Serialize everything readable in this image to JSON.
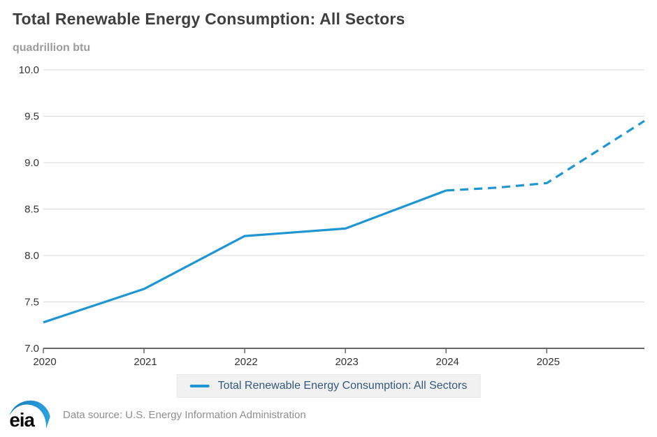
{
  "header": {
    "title": "Total Renewable Energy Consumption: All Sectors",
    "units_label": "quadrillion btu"
  },
  "chart_data": {
    "type": "line",
    "title": "Total Renewable Energy Consumption: All Sectors",
    "ylabel": "quadrillion btu",
    "xlabel": "",
    "xlim": [
      2020,
      2025.97
    ],
    "ylim": [
      7.0,
      10.0
    ],
    "grid": "horizontal gridlines, light gray; bottom axis dark with downward year ticks",
    "legend_position": "bottom-center",
    "x_ticks": [
      2020,
      2021,
      2022,
      2023,
      2024,
      2025
    ],
    "x_tick_labels": [
      "2020",
      "2021",
      "2022",
      "2023",
      "2024",
      "2025"
    ],
    "y_ticks": [
      7.0,
      7.5,
      8.0,
      8.5,
      9.0,
      9.5,
      10.0
    ],
    "y_tick_labels": [
      "7.0",
      "7.5",
      "8.0",
      "8.5",
      "9.0",
      "9.5",
      "10.0"
    ],
    "series": [
      {
        "name": "Total Renewable Energy Consumption: All Sectors (history)",
        "style": "solid",
        "color": "#1e96d3",
        "x": [
          2020,
          2021,
          2022,
          2023,
          2024
        ],
        "values": [
          7.28,
          7.64,
          8.21,
          8.29,
          8.7
        ]
      },
      {
        "name": "Total Renewable Energy Consumption: All Sectors (forecast)",
        "style": "dashed",
        "color": "#1e96d3",
        "x": [
          2024,
          2024.5,
          2025,
          2025.97
        ],
        "values": [
          8.7,
          8.73,
          8.78,
          9.45
        ]
      }
    ]
  },
  "legend": {
    "label": "Total Renewable Energy Consumption: All Sectors"
  },
  "footer": {
    "logo_text": "eia",
    "data_source": "Data source: U.S. Energy Information Administration"
  },
  "colors": {
    "background": "#ffffff",
    "title": "#3f3f3f",
    "units": "#9c9c9c",
    "axis": "#666666",
    "gridline": "#d9d9d9",
    "tick_label": "#333333",
    "line": "#1e96d3",
    "legend_bg": "#f1f1f1",
    "legend_text": "#35587c",
    "source_text": "#8f8f8f",
    "logo_swoosh_start": "#1378be",
    "logo_swoosh_end": "#2ba3de"
  }
}
